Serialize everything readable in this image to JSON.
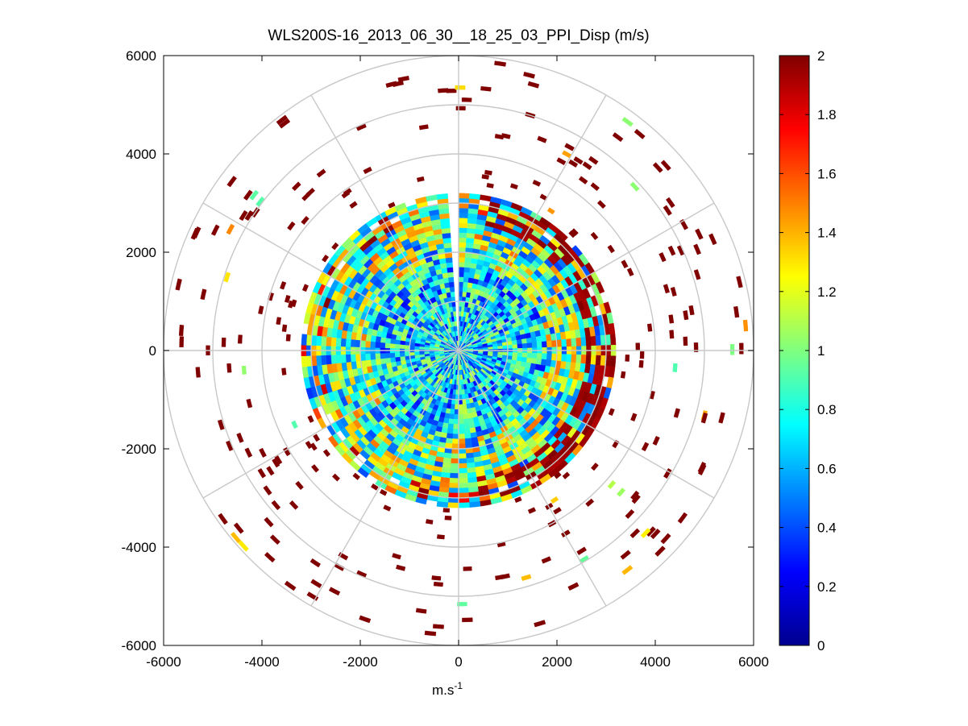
{
  "chart_data": {
    "type": "heatmap",
    "subtype": "polar-ppi",
    "title": "WLS200S-16_2013_06_30__18_25_03_PPI_Disp (m/s)",
    "xlabel": "m.s",
    "xlabel_superscript": "-1",
    "ylabel": "",
    "xlim": [
      -6000,
      6000
    ],
    "ylim": [
      -6000,
      6000
    ],
    "xticks": [
      -6000,
      -4000,
      -2000,
      0,
      2000,
      4000,
      6000
    ],
    "yticks": [
      6000,
      4000,
      2000,
      0,
      -2000,
      -4000,
      -6000
    ],
    "xtick_labels": [
      "-6000",
      "-4000",
      "-2000",
      "0",
      "2000",
      "4000",
      "6000"
    ],
    "ytick_labels": [
      "6000",
      "4000",
      "2000",
      "0",
      "-2000",
      "-4000",
      "-6000"
    ],
    "polar_grid": {
      "rings": [
        1000,
        2000,
        3000,
        4000,
        5000,
        6000
      ],
      "spokes_deg": [
        0,
        30,
        60,
        90,
        120,
        150,
        180,
        210,
        240,
        270,
        300,
        330
      ]
    },
    "grid": true,
    "scan_max_range": 3200,
    "sparse_max_range": 5900,
    "gap_azimuth_deg": [
      -5,
      0
    ],
    "colorbar": {
      "range": [
        0,
        2
      ],
      "ticks": [
        0,
        0.2,
        0.4,
        0.6,
        0.8,
        1,
        1.2,
        1.4,
        1.6,
        1.8,
        2
      ],
      "tick_labels": [
        "0",
        "0.2",
        "0.4",
        "0.6",
        "0.8",
        "1",
        "1.2",
        "1.4",
        "1.6",
        "1.8",
        "2"
      ],
      "colormap": "jet",
      "placement": "right"
    }
  }
}
